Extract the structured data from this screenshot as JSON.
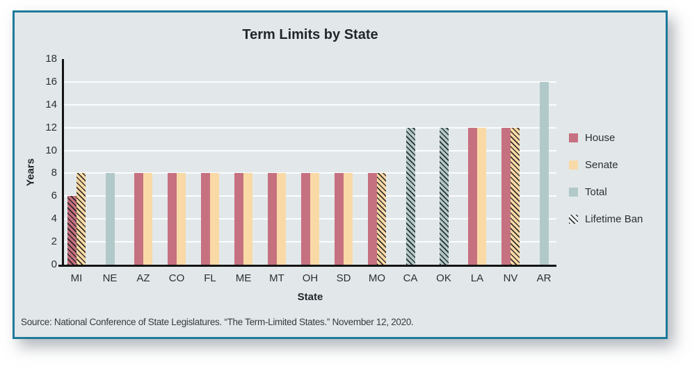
{
  "frame": {
    "border_color": "#1e7a9a",
    "background_color": "#e2e8ea"
  },
  "chart_data": {
    "type": "bar",
    "title": "Term Limits by State",
    "xlabel": "State",
    "ylabel": "Years",
    "ylim": [
      0,
      18
    ],
    "ytick_step": 2,
    "grid": true,
    "gridline_color": "#fbfdfd",
    "legend_position": "right",
    "categories": [
      "MI",
      "NE",
      "AZ",
      "CO",
      "FL",
      "ME",
      "MT",
      "OH",
      "SD",
      "MO",
      "CA",
      "OK",
      "LA",
      "NV",
      "AR"
    ],
    "series": [
      {
        "name": "House",
        "color": "#c67180",
        "values": [
          6,
          null,
          8,
          8,
          8,
          8,
          8,
          8,
          8,
          8,
          null,
          null,
          12,
          12,
          null
        ],
        "lifetime_ban": [
          true,
          false,
          false,
          false,
          false,
          false,
          false,
          false,
          false,
          false,
          false,
          false,
          false,
          false,
          false
        ]
      },
      {
        "name": "Senate",
        "color": "#f9d9a6",
        "values": [
          8,
          null,
          8,
          8,
          8,
          8,
          8,
          8,
          8,
          8,
          null,
          null,
          12,
          12,
          null
        ],
        "lifetime_ban": [
          true,
          false,
          false,
          false,
          false,
          false,
          false,
          false,
          false,
          true,
          false,
          false,
          false,
          true,
          false
        ]
      },
      {
        "name": "Total",
        "color": "#b2c9c9",
        "values": [
          null,
          8,
          null,
          null,
          null,
          null,
          null,
          null,
          null,
          null,
          12,
          12,
          null,
          null,
          16
        ],
        "lifetime_ban": [
          false,
          false,
          false,
          false,
          false,
          false,
          false,
          false,
          false,
          false,
          true,
          true,
          false,
          false,
          false
        ]
      }
    ],
    "legend": [
      {
        "label": "House",
        "color": "#c67180",
        "hatch": false
      },
      {
        "label": "Senate",
        "color": "#f9d9a6",
        "hatch": false
      },
      {
        "label": "Total",
        "color": "#b2c9c9",
        "hatch": false
      },
      {
        "label": "Lifetime Ban",
        "color": "#eef1f2",
        "hatch": true
      }
    ]
  },
  "source": "Source: National Conference of State Legislatures. “The Term-Limited States.” November 12, 2020."
}
